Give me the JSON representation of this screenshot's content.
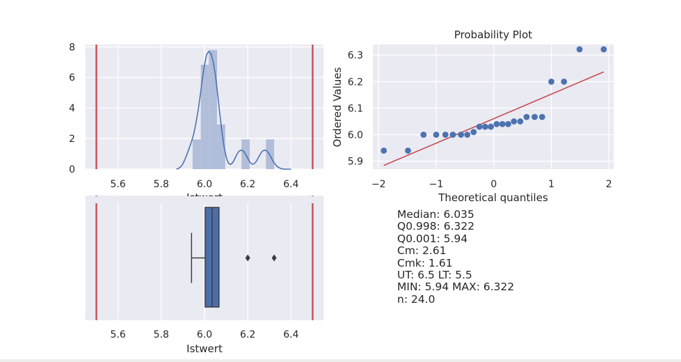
{
  "colors": {
    "plot_bg": "#eaeaf2",
    "grid": "#ffffff",
    "histogram": "#a7b6d6",
    "kde": "#4c72b0",
    "tolerance_lines": "#c44e52",
    "points": "#4c72b0",
    "fit_line": "#c44e52",
    "box_fill": "#4c6eaa",
    "box_edge": "#3d3d3d"
  },
  "chart_data": [
    {
      "id": "histogram",
      "type": "bar",
      "title": "",
      "xlabel": "Istwert",
      "ylabel": "",
      "xlim": [
        5.45,
        6.55
      ],
      "ylim": [
        0,
        8.15
      ],
      "xticks": [
        5.6,
        5.8,
        6.0,
        6.2,
        6.4
      ],
      "yticks": [
        0,
        2,
        4,
        6,
        8
      ],
      "xtick_labels": [
        "5.6",
        "5.8",
        "6.0",
        "6.2",
        "6.4"
      ],
      "ytick_labels": [
        "0",
        "2",
        "4",
        "6",
        "8"
      ],
      "bins": [
        {
          "x0": 5.945,
          "x1": 5.983,
          "height": 1.95
        },
        {
          "x0": 5.983,
          "x1": 6.02,
          "height": 6.83
        },
        {
          "x0": 6.02,
          "x1": 6.058,
          "height": 7.8
        },
        {
          "x0": 6.058,
          "x1": 6.096,
          "height": 2.92
        },
        {
          "x0": 6.096,
          "x1": 6.133,
          "height": 0
        },
        {
          "x0": 6.133,
          "x1": 6.171,
          "height": 0
        },
        {
          "x0": 6.171,
          "x1": 6.209,
          "height": 1.95
        },
        {
          "x0": 6.209,
          "x1": 6.246,
          "height": 0
        },
        {
          "x0": 6.246,
          "x1": 6.284,
          "height": 0
        },
        {
          "x0": 6.284,
          "x1": 6.322,
          "height": 1.95
        }
      ],
      "kde": {
        "x": [
          5.87,
          5.88,
          5.89,
          5.9,
          5.91,
          5.92,
          5.93,
          5.94,
          5.95,
          5.96,
          5.97,
          5.98,
          5.99,
          6.0,
          6.01,
          6.02,
          6.03,
          6.04,
          6.05,
          6.06,
          6.07,
          6.08,
          6.09,
          6.1,
          6.11,
          6.12,
          6.13,
          6.14,
          6.15,
          6.16,
          6.17,
          6.18,
          6.19,
          6.2,
          6.21,
          6.22,
          6.23,
          6.24,
          6.25,
          6.26,
          6.27,
          6.28,
          6.29,
          6.3,
          6.31,
          6.32,
          6.33,
          6.34,
          6.35,
          6.36,
          6.37,
          6.38,
          6.39,
          6.4
        ],
        "y": [
          0.0,
          0.05,
          0.15,
          0.35,
          0.65,
          1.0,
          1.4,
          1.8,
          2.3,
          3.0,
          3.8,
          4.8,
          5.9,
          6.85,
          7.5,
          7.7,
          7.55,
          7.05,
          6.2,
          5.0,
          3.7,
          2.5,
          1.5,
          0.8,
          0.4,
          0.3,
          0.42,
          0.68,
          0.97,
          1.18,
          1.25,
          1.18,
          0.97,
          0.7,
          0.45,
          0.33,
          0.35,
          0.52,
          0.78,
          1.03,
          1.2,
          1.25,
          1.18,
          0.97,
          0.7,
          0.45,
          0.26,
          0.13,
          0.06,
          0.02,
          0.0,
          0.0,
          0.0,
          0.0
        ]
      },
      "tolerance_lines": [
        5.5,
        6.5
      ]
    },
    {
      "id": "probability_plot",
      "type": "scatter",
      "title": "Probability Plot",
      "xlabel": "Theoretical quantiles",
      "ylabel": "Ordered Values",
      "xlim": [
        -2.1,
        2.08
      ],
      "ylim": [
        5.87,
        6.34
      ],
      "xticks": [
        -2,
        -1,
        0,
        1,
        2
      ],
      "yticks": [
        5.9,
        6.0,
        6.1,
        6.2,
        6.3
      ],
      "xtick_labels": [
        "−2",
        "−1",
        "0",
        "1",
        "2"
      ],
      "ytick_labels": [
        "5.9",
        "6.0",
        "6.1",
        "6.2",
        "6.3"
      ],
      "points": {
        "x": [
          -1.91,
          -1.49,
          -1.22,
          -1.0,
          -0.84,
          -0.71,
          -0.57,
          -0.46,
          -0.35,
          -0.25,
          -0.15,
          -0.05,
          0.05,
          0.15,
          0.25,
          0.35,
          0.46,
          0.57,
          0.71,
          0.84,
          1.0,
          1.22,
          1.49,
          1.91
        ],
        "y": [
          5.94,
          5.94,
          6.0,
          6.0,
          6.0,
          6.0,
          6.0,
          6.0,
          6.01,
          6.03,
          6.03,
          6.03,
          6.04,
          6.04,
          6.04,
          6.05,
          6.05,
          6.067,
          6.067,
          6.067,
          6.2,
          6.2,
          6.322,
          6.322
        ]
      },
      "fit_line": {
        "x": [
          -1.91,
          1.91
        ],
        "y": [
          5.884,
          6.237
        ]
      }
    },
    {
      "id": "boxplot",
      "type": "box",
      "title": "",
      "xlabel": "Istwert",
      "ylabel": "",
      "xlim": [
        5.45,
        6.55
      ],
      "xticks": [
        5.6,
        5.8,
        6.0,
        6.2,
        6.4
      ],
      "xtick_labels": [
        "5.6",
        "5.8",
        "6.0",
        "6.2",
        "6.4"
      ],
      "box": {
        "whisker_low": 5.94,
        "q1": 6.003,
        "median": 6.035,
        "q3": 6.067,
        "whisker_high": 6.067,
        "outliers": [
          6.2,
          6.322
        ]
      },
      "tolerance_lines": [
        5.5,
        6.5
      ]
    }
  ],
  "stats": [
    "Median: 6.035",
    "Q0.998: 6.322",
    "Q0.001: 5.94",
    "Cm: 2.61",
    "Cmk: 1.61",
    "UT: 6.5 LT: 5.5",
    "MIN: 5.94 MAX: 6.322",
    "n: 24.0"
  ]
}
